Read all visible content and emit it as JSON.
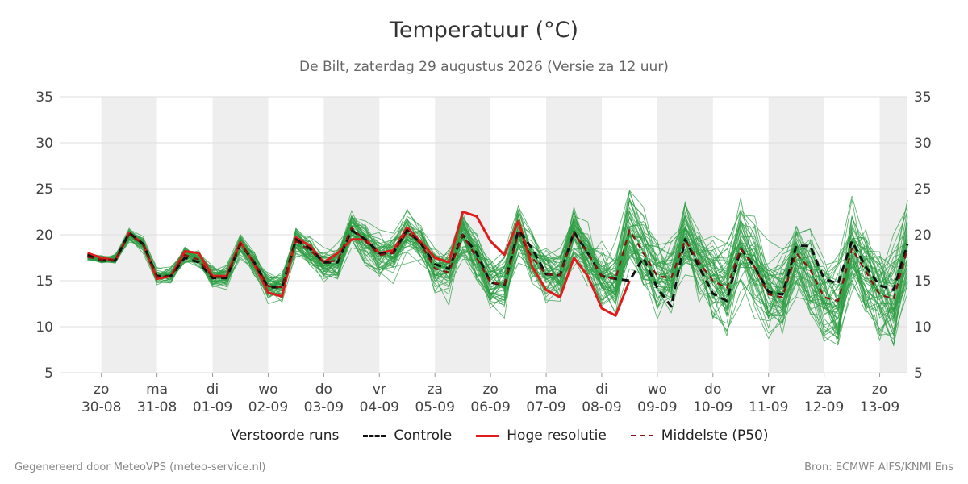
{
  "colors": {
    "members": "#2e9e44",
    "control": "#111111",
    "hires": "#e01b1b",
    "median": "#8b1111",
    "weekend_band": "#eeeeee",
    "grid": "#dddddd"
  },
  "footer": {
    "left": "Gegenereerd door MeteoVPS (meteo-service.nl)",
    "right": "Bron: ECMWF AIFS/KNMI Ens"
  },
  "chart_data": {
    "type": "line",
    "title": "Temperatuur (°C)",
    "subtitle": "De Bilt, zaterdag 29 augustus 2026 (Versie za 12 uur)",
    "ylim": [
      5,
      35
    ],
    "yticks": [
      5,
      10,
      15,
      20,
      25,
      30,
      35
    ],
    "x_range_days": [
      -0.75,
      14.5
    ],
    "grid": true,
    "legend_position": "bottom",
    "x_tick_labels": [
      {
        "day": "zo",
        "date": "30-08"
      },
      {
        "day": "ma",
        "date": "31-08"
      },
      {
        "day": "di",
        "date": "01-09"
      },
      {
        "day": "wo",
        "date": "02-09"
      },
      {
        "day": "do",
        "date": "03-09"
      },
      {
        "day": "vr",
        "date": "04-09"
      },
      {
        "day": "za",
        "date": "05-09"
      },
      {
        "day": "zo",
        "date": "06-09"
      },
      {
        "day": "ma",
        "date": "07-09"
      },
      {
        "day": "di",
        "date": "08-09"
      },
      {
        "day": "wo",
        "date": "09-09"
      },
      {
        "day": "do",
        "date": "10-09"
      },
      {
        "day": "vr",
        "date": "11-09"
      },
      {
        "day": "za",
        "date": "12-09"
      },
      {
        "day": "zo",
        "date": "13-09"
      }
    ],
    "shaded_days": [
      0,
      2,
      4,
      6,
      8,
      10,
      12,
      14
    ],
    "x": [
      -0.25,
      0,
      0.25,
      0.5,
      0.75,
      1,
      1.25,
      1.5,
      1.75,
      2,
      2.25,
      2.5,
      2.75,
      3,
      3.25,
      3.5,
      3.75,
      4,
      4.25,
      4.5,
      4.75,
      5,
      5.25,
      5.5,
      5.75,
      6,
      6.25,
      6.5,
      6.75,
      7,
      7.25,
      7.5,
      7.75,
      8,
      8.25,
      8.5,
      8.75,
      9,
      9.25,
      9.5,
      9.75,
      10,
      10.25,
      10.5,
      10.75,
      11,
      11.25,
      11.5,
      11.75,
      12,
      12.25,
      12.5,
      12.75,
      13,
      13.25,
      13.5,
      13.75,
      14,
      14.25,
      14.5
    ],
    "series": [
      {
        "name": "Controle",
        "style": "dashed",
        "values": [
          17.8,
          17.2,
          17.2,
          20.2,
          19,
          15.5,
          15.5,
          17.5,
          17,
          15.3,
          15.3,
          19,
          17,
          14.3,
          14.3,
          19.5,
          18.5,
          17,
          17,
          20.5,
          19.5,
          18,
          18,
          20.5,
          19,
          16.8,
          16.3,
          20,
          18,
          14.8,
          14.5,
          20.5,
          18.5,
          15.7,
          15.6,
          20.3,
          18,
          15.5,
          15.2,
          15,
          17.5,
          14.2,
          12.2,
          19.5,
          16.5,
          13.6,
          12.8,
          18.5,
          16.5,
          13.8,
          13.5,
          18.8,
          18.8,
          15.2,
          14.7,
          19.3,
          16.5,
          14.5,
          14,
          19
        ]
      },
      {
        "name": "Hoge resolutie",
        "style": "solid",
        "values": [
          18,
          17.5,
          17.2,
          20.2,
          19,
          15.2,
          15.5,
          18.2,
          18,
          15.5,
          15.5,
          19.2,
          16.8,
          13.7,
          13.3,
          19.7,
          18.8,
          17,
          18,
          19.5,
          19.5,
          18,
          18.3,
          20.8,
          19.2,
          17.5,
          17,
          22.5,
          22,
          19.3,
          17.8,
          21.5,
          16.5,
          14,
          13.2,
          17.5,
          15.5,
          12,
          11.2,
          15,
          null,
          null,
          null,
          null,
          null,
          null,
          null,
          null,
          null,
          null,
          null,
          null,
          null,
          null,
          null,
          null,
          null,
          null,
          null,
          null
        ]
      },
      {
        "name": "Middelste (P50)",
        "style": "dashed",
        "values": [
          17.6,
          17.3,
          17.3,
          20,
          19,
          15.4,
          15.5,
          17.8,
          17.3,
          15.4,
          15.4,
          19,
          17,
          14.4,
          14.3,
          19.3,
          18.3,
          17,
          17.2,
          20.8,
          19.3,
          17.8,
          18,
          20.3,
          19,
          16.3,
          15.9,
          20,
          17.5,
          14.8,
          14.6,
          20.2,
          17.5,
          15.7,
          15.6,
          20.2,
          18,
          15.5,
          15.2,
          20.5,
          18,
          15.5,
          15.3,
          19.4,
          17,
          15,
          14.2,
          18.5,
          16.5,
          13.5,
          13.2,
          18,
          16.2,
          13.2,
          12.8,
          18.5,
          16,
          13.5,
          13,
          18.5
        ]
      }
    ]
  },
  "legend": [
    {
      "key": "members",
      "label": "Verstoorde runs",
      "style": "thin"
    },
    {
      "key": "control",
      "label": "Controle",
      "style": "dashed"
    },
    {
      "key": "hires",
      "label": "Hoge resolutie",
      "style": "solid"
    },
    {
      "key": "median",
      "label": "Middelste (P50)",
      "style": "dashed-thin"
    }
  ]
}
